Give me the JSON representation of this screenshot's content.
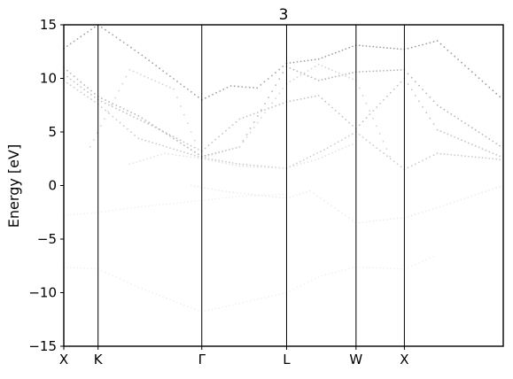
{
  "chart_data": {
    "type": "scatter",
    "title": "3",
    "xlabel": "",
    "ylabel": "Energy [eV]",
    "ylim": [
      -15,
      15
    ],
    "xlim": [
      0,
      1
    ],
    "y_ticks": [
      15,
      10,
      5,
      0,
      -5,
      -10,
      -15
    ],
    "y_tick_labels": [
      "15",
      "10",
      "5",
      "0",
      "−5",
      "−10",
      "−15"
    ],
    "kpoints": [
      {
        "label": "X",
        "x": 0.0
      },
      {
        "label": "K",
        "x": 0.078
      },
      {
        "label": "Γ",
        "x": 0.314
      },
      {
        "label": "L",
        "x": 0.507
      },
      {
        "label": "W",
        "x": 0.665
      },
      {
        "label": "X",
        "x": 0.775
      }
    ],
    "grid": false,
    "legend": "none",
    "series": [
      {
        "color": "#9e9e9e",
        "x": [
          0.0,
          0.078,
          0.17,
          0.314,
          0.38,
          0.44,
          0.507,
          0.58,
          0.665,
          0.775,
          0.85,
          1.0
        ],
        "y": [
          12.8,
          15.0,
          12.4,
          8.0,
          9.3,
          9.1,
          11.4,
          11.8,
          13.1,
          12.7,
          13.5,
          8.0
        ]
      },
      {
        "color": "#b5b5b5",
        "x": [
          0.0,
          0.078,
          0.17,
          0.314,
          0.4,
          0.507,
          0.58,
          0.665,
          0.775,
          0.85,
          1.0
        ],
        "y": [
          11.0,
          8.3,
          6.5,
          2.7,
          3.6,
          11.1,
          9.8,
          10.6,
          10.8,
          7.5,
          3.5
        ]
      },
      {
        "color": "#c2c2c2",
        "x": [
          0.0,
          0.078,
          0.2,
          0.314,
          0.4,
          0.507,
          0.58,
          0.665,
          0.775,
          0.85,
          1.0
        ],
        "y": [
          10.4,
          8.0,
          5.6,
          3.2,
          6.2,
          7.8,
          8.4,
          5.3,
          10.0,
          5.2,
          2.6
        ]
      },
      {
        "color": "#cbcbcb",
        "x": [
          0.0,
          0.078,
          0.17,
          0.314,
          0.4,
          0.507,
          0.6,
          0.665,
          0.775,
          0.85,
          1.0
        ],
        "y": [
          9.8,
          7.6,
          4.4,
          2.6,
          2.0,
          1.6,
          3.5,
          5.0,
          1.5,
          3.0,
          2.4
        ]
      },
      {
        "color": "#d4d4d4",
        "x": [
          0.06,
          0.15,
          0.25,
          0.314,
          0.4,
          0.507,
          0.58,
          0.665,
          0.75
        ],
        "y": [
          3.6,
          10.8,
          9.0,
          2.6,
          3.6,
          9.5,
          11.3,
          9.8,
          2.0
        ]
      },
      {
        "color": "#e4e4e4",
        "x": [
          0.15,
          0.23,
          0.314,
          0.4,
          0.507,
          0.58,
          0.665
        ],
        "y": [
          2.0,
          3.0,
          2.5,
          1.8,
          1.6,
          2.5,
          4.0
        ]
      },
      {
        "color": "#ececec",
        "x": [
          0.29,
          0.36,
          0.42,
          0.507,
          0.56,
          0.665,
          0.775,
          0.84,
          1.0
        ],
        "y": [
          0.0,
          -0.5,
          -0.8,
          -1.2,
          -0.5,
          -3.5,
          -3.0,
          -2.2,
          0.0
        ]
      },
      {
        "color": "#f1f1f1",
        "x": [
          0.0,
          0.078,
          0.17,
          0.314,
          0.4,
          0.507
        ],
        "y": [
          -2.8,
          -2.5,
          -2.0,
          -1.4,
          -1.0,
          -0.8
        ]
      },
      {
        "color": "#f1f1f1",
        "x": [
          0.0,
          0.078,
          0.17,
          0.314,
          0.4,
          0.507,
          0.58,
          0.665,
          0.775,
          0.85
        ],
        "y": [
          -7.6,
          -7.8,
          -9.5,
          -11.8,
          -11.0,
          -10.0,
          -8.5,
          -7.6,
          -7.8,
          -6.5
        ]
      }
    ]
  }
}
